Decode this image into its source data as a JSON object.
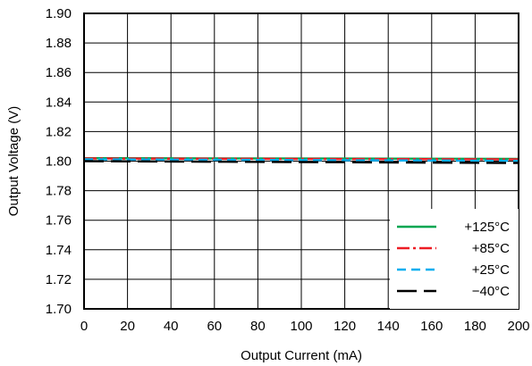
{
  "chart_data": {
    "type": "line",
    "title": "",
    "xlabel": "Output Current (mA)",
    "ylabel": "Output Voltage (V)",
    "xlim": [
      0,
      200
    ],
    "ylim": [
      1.7,
      1.9
    ],
    "x_ticks": [
      "0",
      "20",
      "40",
      "60",
      "80",
      "100",
      "120",
      "140",
      "160",
      "180",
      "200"
    ],
    "y_ticks": [
      "1.90",
      "1.88",
      "1.86",
      "1.84",
      "1.82",
      "1.80",
      "1.78",
      "1.76",
      "1.74",
      "1.72",
      "1.70"
    ],
    "grid": true,
    "legend_position": "bottom-right",
    "series": [
      {
        "name": "+125°C",
        "color": "#00a651",
        "dash": "solid",
        "x": [
          0,
          200
        ],
        "y": [
          1.802,
          1.8015
        ]
      },
      {
        "name": "+85°C",
        "color": "#ed1c24",
        "dash": "dashdot",
        "x": [
          0,
          200
        ],
        "y": [
          1.8018,
          1.8012
        ]
      },
      {
        "name": "+25°C",
        "color": "#00aeef",
        "dash": "dash",
        "x": [
          0,
          200
        ],
        "y": [
          1.8012,
          1.8002
        ]
      },
      {
        "name": "−40°C",
        "color": "#000000",
        "dash": "longdash",
        "x": [
          0,
          200
        ],
        "y": [
          1.8,
          1.7988
        ]
      }
    ]
  }
}
